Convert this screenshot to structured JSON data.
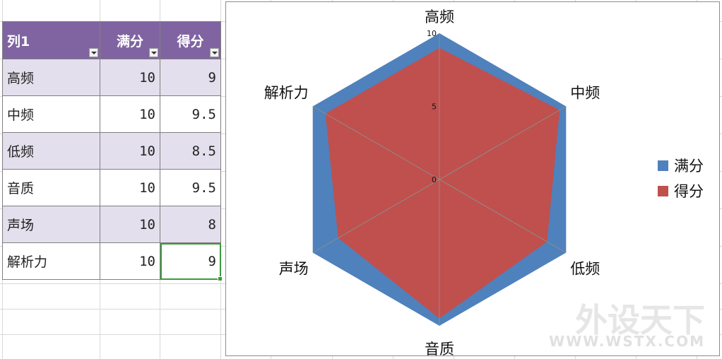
{
  "table": {
    "headers": [
      "列1",
      "满分",
      "得分"
    ],
    "rows": [
      {
        "label": "高频",
        "full": "10",
        "score": "9"
      },
      {
        "label": "中频",
        "full": "10",
        "score": "9.5"
      },
      {
        "label": "低频",
        "full": "10",
        "score": "8.5"
      },
      {
        "label": "音质",
        "full": "10",
        "score": "9.5"
      },
      {
        "label": "声场",
        "full": "10",
        "score": "8"
      },
      {
        "label": "解析力",
        "full": "10",
        "score": "9"
      }
    ]
  },
  "chart_data": {
    "type": "radar",
    "categories": [
      "高频",
      "中频",
      "低频",
      "音质",
      "声场",
      "解析力"
    ],
    "series": [
      {
        "name": "满分",
        "values": [
          10,
          10,
          10,
          10,
          10,
          10
        ],
        "color": "#4f81bd"
      },
      {
        "name": "得分",
        "values": [
          9,
          9.5,
          8.5,
          9.5,
          8,
          9
        ],
        "color": "#c0504d"
      }
    ],
    "rmin": 0,
    "rmax": 10,
    "ticks": [
      "0",
      "5",
      "10"
    ],
    "legend_position": "right",
    "spoke_color": "#8c8c8c"
  },
  "watermark": {
    "title": "外设天下",
    "site": "WWW.WSTX.COM"
  }
}
